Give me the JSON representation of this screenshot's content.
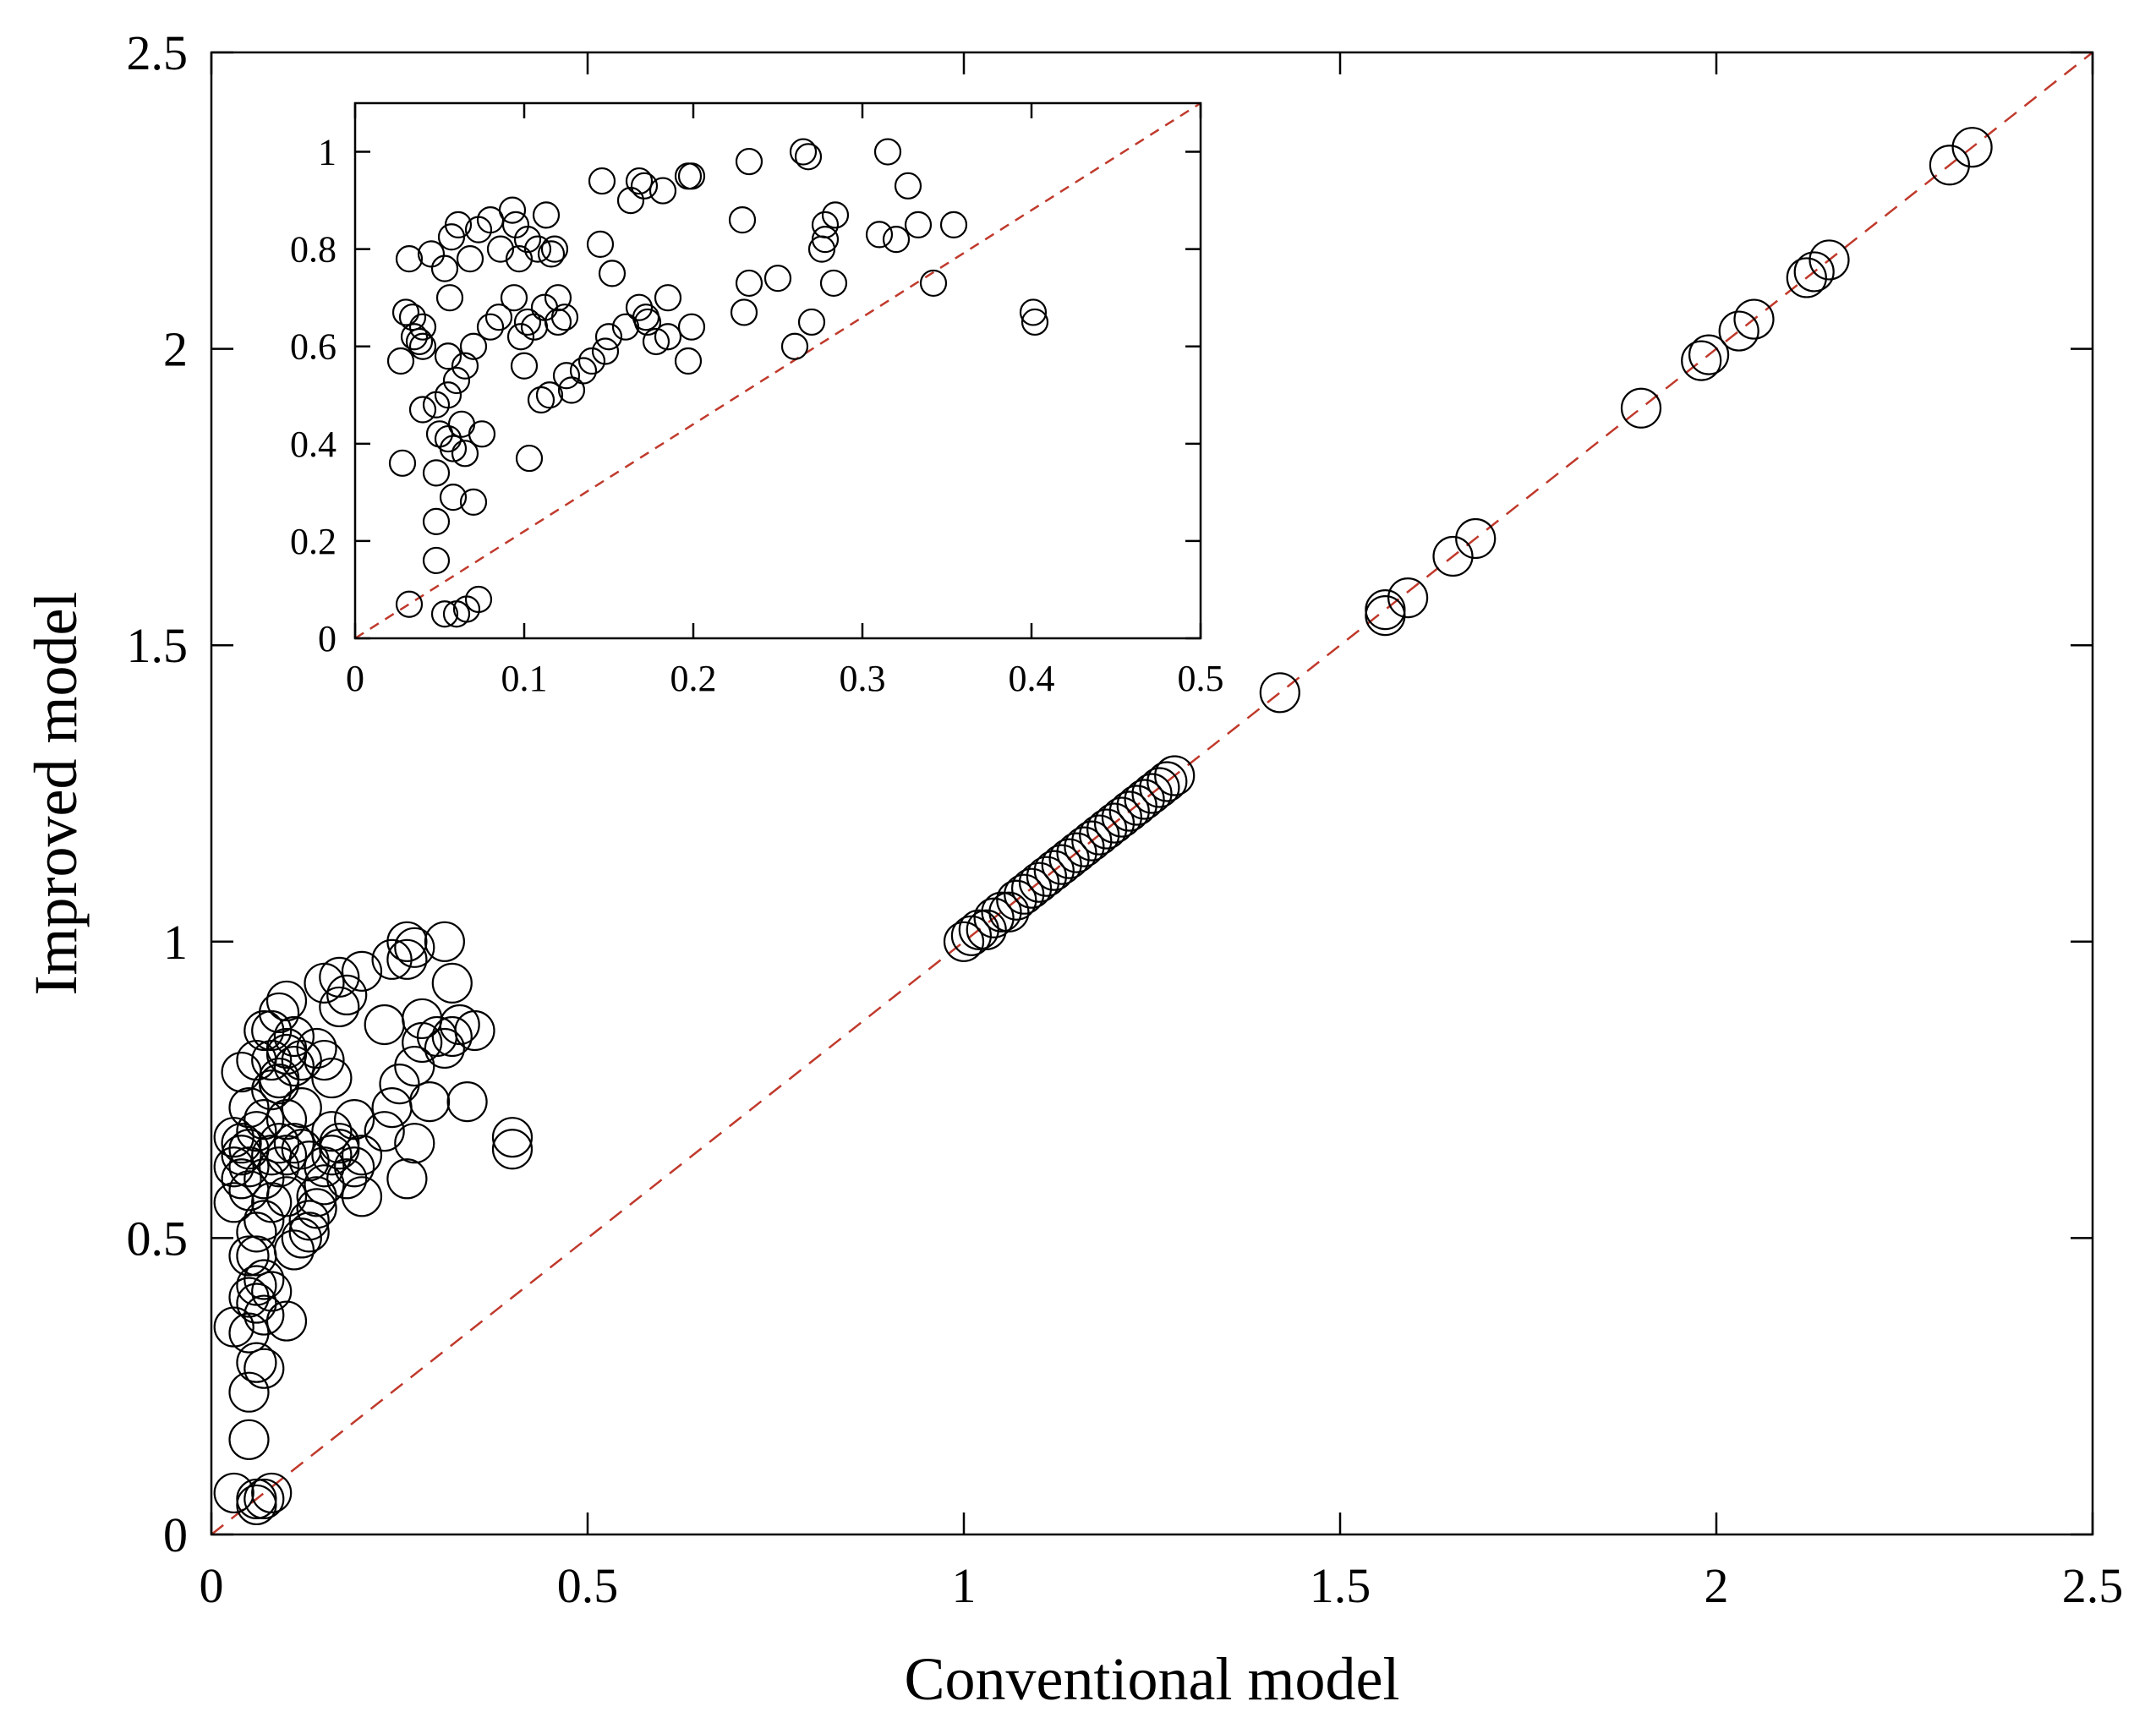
{
  "chart_data": [
    {
      "id": "main",
      "type": "scatter",
      "xlabel": "Conventional model",
      "ylabel": "Improved model",
      "xlim": [
        0,
        2.5
      ],
      "ylim": [
        0,
        2.5
      ],
      "xticks": [
        0,
        0.5,
        1,
        1.5,
        2,
        2.5
      ],
      "yticks": [
        0,
        0.5,
        1,
        1.5,
        2,
        2.5
      ],
      "xtick_labels": [
        "0",
        "0.5",
        "1",
        "1.5",
        "2",
        "2.5"
      ],
      "ytick_labels": [
        "0",
        "0.5",
        "1",
        "1.5",
        "2",
        "2.5"
      ],
      "reference_line": {
        "from": [
          0,
          0
        ],
        "to": [
          2.5,
          2.5
        ],
        "color": "#c0392b",
        "style": "dashed"
      },
      "marker": "open-circle",
      "points": [
        [
          0.03,
          0.62
        ],
        [
          0.03,
          0.67
        ],
        [
          0.04,
          0.66
        ],
        [
          0.05,
          0.65
        ],
        [
          0.04,
          0.6
        ],
        [
          0.03,
          0.56
        ],
        [
          0.05,
          0.72
        ],
        [
          0.04,
          0.78
        ],
        [
          0.06,
          0.8
        ],
        [
          0.07,
          0.85
        ],
        [
          0.05,
          0.62
        ],
        [
          0.06,
          0.68
        ],
        [
          0.07,
          0.7
        ],
        [
          0.08,
          0.75
        ],
        [
          0.09,
          0.77
        ],
        [
          0.1,
          0.81
        ],
        [
          0.11,
          0.84
        ],
        [
          0.08,
          0.85
        ],
        [
          0.09,
          0.88
        ],
        [
          0.1,
          0.9
        ],
        [
          0.12,
          0.8
        ],
        [
          0.11,
          0.79
        ],
        [
          0.1,
          0.82
        ],
        [
          0.08,
          0.8
        ],
        [
          0.09,
          0.76
        ],
        [
          0.12,
          0.65
        ],
        [
          0.1,
          0.64
        ],
        [
          0.11,
          0.66
        ],
        [
          0.09,
          0.62
        ],
        [
          0.13,
          0.63
        ],
        [
          0.06,
          0.51
        ],
        [
          0.07,
          0.53
        ],
        [
          0.06,
          0.47
        ],
        [
          0.08,
          0.56
        ],
        [
          0.05,
          0.47
        ],
        [
          0.12,
          0.5
        ],
        [
          0.11,
          0.48
        ],
        [
          0.13,
          0.53
        ],
        [
          0.1,
          0.57
        ],
        [
          0.14,
          0.55
        ],
        [
          0.06,
          0.42
        ],
        [
          0.05,
          0.4
        ],
        [
          0.07,
          0.43
        ],
        [
          0.06,
          0.39
        ],
        [
          0.08,
          0.41
        ],
        [
          0.07,
          0.37
        ],
        [
          0.1,
          0.36
        ],
        [
          0.03,
          0.35
        ],
        [
          0.05,
          0.34
        ],
        [
          0.06,
          0.29
        ],
        [
          0.07,
          0.28
        ],
        [
          0.05,
          0.24
        ],
        [
          0.05,
          0.16
        ],
        [
          0.03,
          0.07
        ],
        [
          0.06,
          0.05
        ],
        [
          0.07,
          0.06
        ],
        [
          0.08,
          0.07
        ],
        [
          0.06,
          0.06
        ],
        [
          0.15,
          0.8
        ],
        [
          0.16,
          0.77
        ],
        [
          0.14,
          0.82
        ],
        [
          0.15,
          0.93
        ],
        [
          0.17,
          0.94
        ],
        [
          0.18,
          0.91
        ],
        [
          0.17,
          0.89
        ],
        [
          0.2,
          0.95
        ],
        [
          0.24,
          0.97
        ],
        [
          0.26,
          1.0
        ],
        [
          0.27,
          0.99
        ],
        [
          0.26,
          0.97
        ],
        [
          0.31,
          1.0
        ],
        [
          0.32,
          0.93
        ],
        [
          0.23,
          0.86
        ],
        [
          0.28,
          0.87
        ],
        [
          0.3,
          0.84
        ],
        [
          0.31,
          0.82
        ],
        [
          0.32,
          0.84
        ],
        [
          0.33,
          0.86
        ],
        [
          0.35,
          0.85
        ],
        [
          0.28,
          0.83
        ],
        [
          0.27,
          0.79
        ],
        [
          0.24,
          0.72
        ],
        [
          0.25,
          0.76
        ],
        [
          0.23,
          0.68
        ],
        [
          0.26,
          0.6
        ],
        [
          0.27,
          0.66
        ],
        [
          0.29,
          0.73
        ],
        [
          0.34,
          0.73
        ],
        [
          0.4,
          0.67
        ],
        [
          0.4,
          0.65
        ],
        [
          0.16,
          0.68
        ],
        [
          0.17,
          0.66
        ],
        [
          0.16,
          0.64
        ],
        [
          0.18,
          0.6
        ],
        [
          0.19,
          0.62
        ],
        [
          0.2,
          0.64
        ],
        [
          0.2,
          0.57
        ],
        [
          0.15,
          0.59
        ],
        [
          0.14,
          0.57
        ],
        [
          0.13,
          0.51
        ],
        [
          0.12,
          0.72
        ],
        [
          0.1,
          0.7
        ],
        [
          0.09,
          0.66
        ],
        [
          0.08,
          0.64
        ],
        [
          0.07,
          0.6
        ],
        [
          0.04,
          0.64
        ],
        [
          0.05,
          0.58
        ],
        [
          0.15,
          0.62
        ],
        [
          0.17,
          0.65
        ],
        [
          0.19,
          0.7
        ],
        [
          1.0,
          1.0
        ],
        [
          1.01,
          1.01
        ],
        [
          1.02,
          1.02
        ],
        [
          1.03,
          1.02
        ],
        [
          1.04,
          1.04
        ],
        [
          1.05,
          1.05
        ],
        [
          1.06,
          1.05
        ],
        [
          1.07,
          1.07
        ],
        [
          1.08,
          1.08
        ],
        [
          1.09,
          1.09
        ],
        [
          1.1,
          1.1
        ],
        [
          1.11,
          1.11
        ],
        [
          1.12,
          1.12
        ],
        [
          1.13,
          1.13
        ],
        [
          1.14,
          1.14
        ],
        [
          1.15,
          1.15
        ],
        [
          1.16,
          1.16
        ],
        [
          1.17,
          1.17
        ],
        [
          1.18,
          1.18
        ],
        [
          1.19,
          1.19
        ],
        [
          1.2,
          1.2
        ],
        [
          1.21,
          1.21
        ],
        [
          1.22,
          1.22
        ],
        [
          1.23,
          1.23
        ],
        [
          1.24,
          1.24
        ],
        [
          1.25,
          1.25
        ],
        [
          1.26,
          1.26
        ],
        [
          1.27,
          1.27
        ],
        [
          1.28,
          1.28
        ],
        [
          1.42,
          1.42
        ],
        [
          1.56,
          1.55
        ],
        [
          1.56,
          1.56
        ],
        [
          1.59,
          1.58
        ],
        [
          1.65,
          1.65
        ],
        [
          1.68,
          1.68
        ],
        [
          1.9,
          1.9
        ],
        [
          1.98,
          1.98
        ],
        [
          1.99,
          1.99
        ],
        [
          2.03,
          2.03
        ],
        [
          2.05,
          2.05
        ],
        [
          2.12,
          2.12
        ],
        [
          2.13,
          2.13
        ],
        [
          2.15,
          2.15
        ],
        [
          2.31,
          2.31
        ],
        [
          2.34,
          2.34
        ]
      ]
    },
    {
      "id": "inset",
      "type": "scatter",
      "xlabel": "",
      "ylabel": "",
      "xlim": [
        0,
        0.5
      ],
      "ylim": [
        0,
        1.1
      ],
      "xticks": [
        0,
        0.1,
        0.2,
        0.3,
        0.4,
        0.5
      ],
      "yticks": [
        0,
        0.2,
        0.4,
        0.6,
        0.8,
        1
      ],
      "xtick_labels": [
        "0",
        "0.1",
        "0.2",
        "0.3",
        "0.4",
        "0.5"
      ],
      "ytick_labels": [
        "0",
        "0.2",
        "0.4",
        "0.6",
        "0.8",
        "1"
      ],
      "reference_line": {
        "from": [
          0,
          0
        ],
        "to": [
          0.5,
          1.1
        ],
        "color": "#c0392b",
        "style": "dashed"
      },
      "marker": "open-circle",
      "points": [
        [
          0.027,
          0.57
        ],
        [
          0.03,
          0.67
        ],
        [
          0.034,
          0.66
        ],
        [
          0.035,
          0.62
        ],
        [
          0.038,
          0.61
        ],
        [
          0.04,
          0.6
        ],
        [
          0.032,
          0.78
        ],
        [
          0.045,
          0.79
        ],
        [
          0.056,
          0.7
        ],
        [
          0.053,
          0.76
        ],
        [
          0.057,
          0.825
        ],
        [
          0.061,
          0.85
        ],
        [
          0.068,
          0.78
        ],
        [
          0.073,
          0.84
        ],
        [
          0.08,
          0.86
        ],
        [
          0.086,
          0.8
        ],
        [
          0.093,
          0.88
        ],
        [
          0.095,
          0.85
        ],
        [
          0.097,
          0.78
        ],
        [
          0.102,
          0.82
        ],
        [
          0.108,
          0.8
        ],
        [
          0.113,
          0.87
        ],
        [
          0.116,
          0.79
        ],
        [
          0.118,
          0.8
        ],
        [
          0.12,
          0.65
        ],
        [
          0.102,
          0.65
        ],
        [
          0.106,
          0.64
        ],
        [
          0.098,
          0.62
        ],
        [
          0.112,
          0.68
        ],
        [
          0.124,
          0.66
        ],
        [
          0.055,
          0.5
        ],
        [
          0.06,
          0.53
        ],
        [
          0.048,
          0.48
        ],
        [
          0.065,
          0.56
        ],
        [
          0.04,
          0.47
        ],
        [
          0.115,
          0.5
        ],
        [
          0.11,
          0.49
        ],
        [
          0.125,
          0.54
        ],
        [
          0.1,
          0.56
        ],
        [
          0.135,
          0.55
        ],
        [
          0.055,
          0.41
        ],
        [
          0.05,
          0.42
        ],
        [
          0.063,
          0.44
        ],
        [
          0.058,
          0.39
        ],
        [
          0.075,
          0.42
        ],
        [
          0.065,
          0.38
        ],
        [
          0.103,
          0.37
        ],
        [
          0.028,
          0.36
        ],
        [
          0.048,
          0.34
        ],
        [
          0.058,
          0.29
        ],
        [
          0.07,
          0.28
        ],
        [
          0.048,
          0.24
        ],
        [
          0.048,
          0.16
        ],
        [
          0.032,
          0.07
        ],
        [
          0.053,
          0.05
        ],
        [
          0.06,
          0.05
        ],
        [
          0.073,
          0.08
        ],
        [
          0.066,
          0.06
        ],
        [
          0.145,
          0.81
        ],
        [
          0.152,
          0.75
        ],
        [
          0.146,
          0.94
        ],
        [
          0.168,
          0.94
        ],
        [
          0.171,
          0.93
        ],
        [
          0.182,
          0.92
        ],
        [
          0.163,
          0.9
        ],
        [
          0.197,
          0.95
        ],
        [
          0.199,
          0.95
        ],
        [
          0.233,
          0.98
        ],
        [
          0.265,
          1.0
        ],
        [
          0.268,
          0.99
        ],
        [
          0.315,
          1.0
        ],
        [
          0.327,
          0.93
        ],
        [
          0.229,
          0.86
        ],
        [
          0.284,
          0.87
        ],
        [
          0.278,
          0.85
        ],
        [
          0.31,
          0.83
        ],
        [
          0.32,
          0.82
        ],
        [
          0.333,
          0.85
        ],
        [
          0.354,
          0.85
        ],
        [
          0.278,
          0.82
        ],
        [
          0.276,
          0.8
        ],
        [
          0.233,
          0.73
        ],
        [
          0.25,
          0.74
        ],
        [
          0.23,
          0.67
        ],
        [
          0.26,
          0.6
        ],
        [
          0.27,
          0.65
        ],
        [
          0.283,
          0.73
        ],
        [
          0.342,
          0.73
        ],
        [
          0.401,
          0.67
        ],
        [
          0.402,
          0.65
        ],
        [
          0.168,
          0.68
        ],
        [
          0.172,
          0.66
        ],
        [
          0.16,
          0.64
        ],
        [
          0.178,
          0.61
        ],
        [
          0.185,
          0.62
        ],
        [
          0.199,
          0.64
        ],
        [
          0.197,
          0.57
        ],
        [
          0.148,
          0.59
        ],
        [
          0.14,
          0.57
        ],
        [
          0.128,
          0.51
        ],
        [
          0.12,
          0.7
        ],
        [
          0.094,
          0.7
        ],
        [
          0.085,
          0.66
        ],
        [
          0.08,
          0.64
        ],
        [
          0.07,
          0.6
        ],
        [
          0.04,
          0.64
        ],
        [
          0.055,
          0.58
        ],
        [
          0.15,
          0.62
        ],
        [
          0.173,
          0.65
        ],
        [
          0.185,
          0.7
        ]
      ]
    }
  ]
}
